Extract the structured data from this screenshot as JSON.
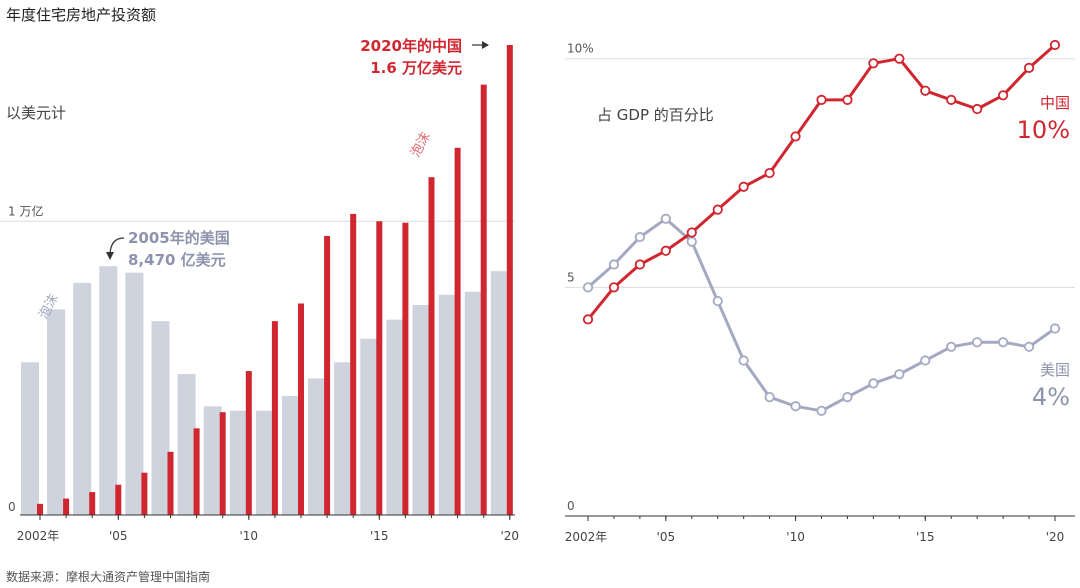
{
  "title": "年度住宅房地产投资额",
  "source": "数据来源：摩根大通资产管理中国指南",
  "colors": {
    "china": "#d0262f",
    "us": "#a4a9c2",
    "us_bar": "#cfd3de",
    "grid": "#dddddd",
    "axis": "#333333"
  },
  "chart_data": [
    {
      "type": "bar",
      "unit_label": "以美元计",
      "ylim": [
        0,
        16000
      ],
      "y_ticks": [
        {
          "value": 0,
          "label": "0"
        },
        {
          "value": 10000,
          "label": "1 万亿"
        }
      ],
      "categories": [
        "2002",
        "2003",
        "2004",
        "2005",
        "2006",
        "2007",
        "2008",
        "2009",
        "2010",
        "2011",
        "2012",
        "2013",
        "2014",
        "2015",
        "2016",
        "2017",
        "2018",
        "2019",
        "2020"
      ],
      "x_tick_labels": [
        {
          "category": "2002",
          "label": "2002年"
        },
        {
          "category": "2005",
          "label": "'05"
        },
        {
          "category": "2010",
          "label": "'10"
        },
        {
          "category": "2015",
          "label": "'15"
        },
        {
          "category": "2020",
          "label": "'20"
        }
      ],
      "series": [
        {
          "name": "美国",
          "values": [
            5200,
            7000,
            7900,
            8470,
            8250,
            6600,
            4800,
            3700,
            3550,
            3550,
            4050,
            4650,
            5200,
            6000,
            6650,
            7150,
            7500,
            7600,
            8300
          ]
        },
        {
          "name": "中国",
          "values": [
            380,
            560,
            780,
            1030,
            1440,
            2150,
            2950,
            3500,
            4900,
            6600,
            7200,
            9500,
            10250,
            10000,
            9950,
            11500,
            12500,
            14650,
            16000
          ]
        }
      ],
      "annotations": [
        {
          "label": "泡沫",
          "series": "美国",
          "rotated": true
        },
        {
          "label": "泡沫",
          "series": "中国",
          "rotated": true
        },
        {
          "title": "2005年的美国",
          "value": "8,470 亿美元",
          "series": "美国",
          "category": "2005"
        },
        {
          "title": "2020年的中国",
          "value": "1.6 万亿美元",
          "series": "中国",
          "category": "2020"
        }
      ]
    },
    {
      "type": "line",
      "label": "占 GDP 的百分比",
      "ylim": [
        0,
        10.3
      ],
      "y_ticks": [
        {
          "value": 0,
          "label": "0"
        },
        {
          "value": 5,
          "label": "5"
        },
        {
          "value": 10,
          "label": "10%"
        }
      ],
      "x": [
        2002,
        2003,
        2004,
        2005,
        2006,
        2007,
        2008,
        2009,
        2010,
        2011,
        2012,
        2013,
        2014,
        2015,
        2016,
        2017,
        2018,
        2019,
        2020
      ],
      "x_tick_labels": [
        {
          "x": 2002,
          "label": "2002年"
        },
        {
          "x": 2005,
          "label": "'05"
        },
        {
          "x": 2010,
          "label": "'10"
        },
        {
          "x": 2015,
          "label": "'15"
        },
        {
          "x": 2020,
          "label": "'20"
        }
      ],
      "series": [
        {
          "name": "中国",
          "end_label": "10%",
          "values": [
            4.3,
            5.0,
            5.5,
            5.8,
            6.2,
            6.7,
            7.2,
            7.5,
            8.3,
            9.1,
            9.1,
            9.9,
            10.0,
            9.3,
            9.1,
            8.9,
            9.2,
            9.8,
            10.3
          ]
        },
        {
          "name": "美国",
          "end_label": "4%",
          "values": [
            5.0,
            5.5,
            6.1,
            6.5,
            6.0,
            4.7,
            3.4,
            2.6,
            2.4,
            2.3,
            2.6,
            2.9,
            3.1,
            3.4,
            3.7,
            3.8,
            3.8,
            3.7,
            4.1
          ]
        }
      ]
    }
  ]
}
